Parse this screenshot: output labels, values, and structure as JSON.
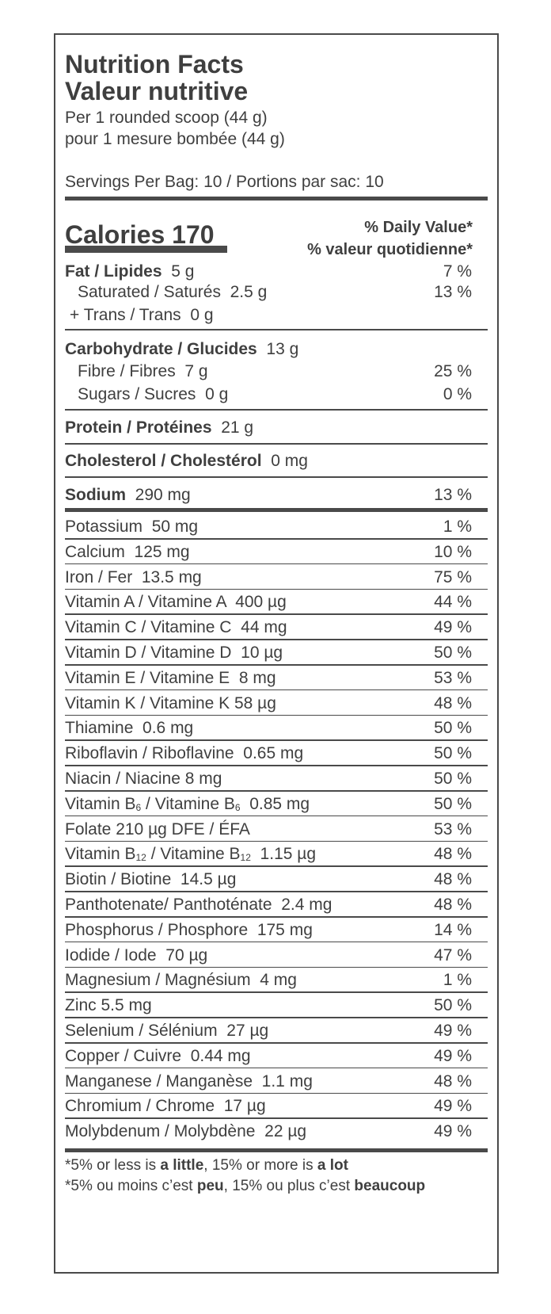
{
  "header": {
    "title_en": "Nutrition Facts",
    "title_fr": "Valeur nutritive",
    "serving_en": "Per 1 rounded scoop (44 g)",
    "serving_fr": "pour 1 mesure bombée (44 g)",
    "servings": "Servings Per Bag: 10 / Portions par sac: 10"
  },
  "calories": {
    "label": "Calories 170",
    "dv_en": "% Daily Value*",
    "dv_fr": "% valeur quotidienne*"
  },
  "macros": {
    "fat": {
      "label": "Fat / Lipides",
      "amount": "5 g",
      "pct": "7 %"
    },
    "sat": {
      "label": "Saturated / Saturés",
      "amount": "2.5 g",
      "pct": "13 %"
    },
    "trans": {
      "label": "+ Trans / Trans",
      "amount": "0 g"
    },
    "carb": {
      "label": "Carbohydrate / Glucides",
      "amount": "13 g"
    },
    "fibre": {
      "label": "Fibre / Fibres",
      "amount": "7 g",
      "pct": "25 %"
    },
    "sugars": {
      "label": "Sugars / Sucres",
      "amount": "0 g",
      "pct": "0 %"
    },
    "protein": {
      "label": "Protein / Protéines",
      "amount": "21 g"
    },
    "chol": {
      "label": "Cholesterol / Cholestérol",
      "amount": "0 mg"
    },
    "sodium": {
      "label": "Sodium",
      "amount": "290 mg",
      "pct": "13 %"
    }
  },
  "micros": [
    {
      "name": "Potassium  50 mg",
      "pct": "1 %"
    },
    {
      "name": "Calcium  125 mg",
      "pct": "10 %"
    },
    {
      "name": "Iron / Fer  13.5 mg",
      "pct": "75 %"
    },
    {
      "name": "Vitamin A / Vitamine A  400 µg",
      "pct": "44 %"
    },
    {
      "name": "Vitamin C / Vitamine C  44 mg",
      "pct": "49 %"
    },
    {
      "name": "Vitamin D / Vitamine D  10 µg",
      "pct": "50 %"
    },
    {
      "name": "Vitamin E / Vitamine E  8 mg",
      "pct": "53 %"
    },
    {
      "name": "Vitamin K / Vitamine K 58 µg",
      "pct": "48 %"
    },
    {
      "name": "Thiamine  0.6 mg",
      "pct": "50 %"
    },
    {
      "name": "Riboflavin / Riboflavine  0.65 mg",
      "pct": "50 %"
    },
    {
      "name": "Niacin / Niacine 8 mg",
      "pct": "50 %"
    },
    {
      "name_pre": "Vitamin B",
      "sub1": "6",
      "name_mid": " / Vitamine B",
      "sub2": "6",
      "name_post": "  0.85 mg",
      "pct": "50 %"
    },
    {
      "name": "Folate 210 µg DFE / ÉFA",
      "pct": "53 %"
    },
    {
      "name_pre": "Vitamin B",
      "sub1": "12",
      "name_mid": " / Vitamine B",
      "sub2": "12",
      "name_post": "  1.15 µg",
      "pct": "48 %"
    },
    {
      "name": "Biotin / Biotine  14.5 µg",
      "pct": "48 %"
    },
    {
      "name": "Panthotenate/ Panthoténate  2.4 mg",
      "pct": "48 %"
    },
    {
      "name": "Phosphorus / Phosphore  175 mg",
      "pct": "14 %"
    },
    {
      "name": "Iodide / Iode  70 µg",
      "pct": "47 %"
    },
    {
      "name": "Magnesium / Magnésium  4 mg",
      "pct": "1 %"
    },
    {
      "name": "Zinc 5.5 mg",
      "pct": "50 %"
    },
    {
      "name": "Selenium / Sélénium  27 µg",
      "pct": "49 %"
    },
    {
      "name": "Copper / Cuivre  0.44 mg",
      "pct": "49 %"
    },
    {
      "name": "Manganese / Manganèse  1.1 mg",
      "pct": "48 %"
    },
    {
      "name": "Chromium / Chrome  17 µg",
      "pct": "49 %"
    },
    {
      "name": "Molybdenum / Molybdène  22 µg",
      "pct": "49 %"
    }
  ],
  "footnote": {
    "en_pre": "*5% or less is ",
    "en_b1": "a little",
    "en_mid": ", 15% or more is ",
    "en_b2": "a lot",
    "fr_pre": "*5% ou moins c’est ",
    "fr_b1": "peu",
    "fr_mid": ", 15% ou plus c’est ",
    "fr_b2": "beaucoup"
  }
}
